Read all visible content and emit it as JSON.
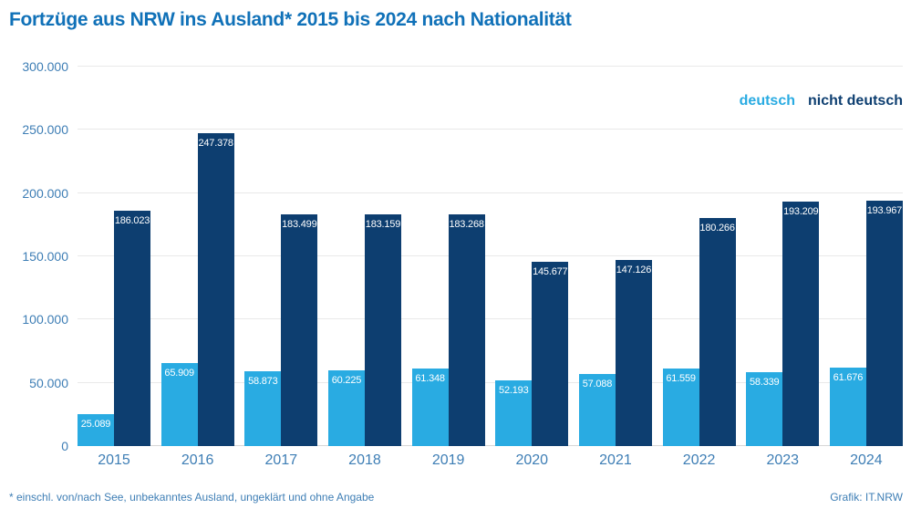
{
  "title": "Fortzüge aus NRW ins Ausland* 2015 bis 2024 nach Nationalität",
  "legend": {
    "deutsch": "deutsch",
    "nicht_deutsch": "nicht deutsch"
  },
  "footnote": "* einschl. von/nach See, unbekanntes Ausland, ungeklärt und ohne Angabe",
  "credit": "Grafik: IT.NRW",
  "colors": {
    "title": "#1071B8",
    "axis_text": "#3E7EB5",
    "grid": "#E9E9E9",
    "value_label": "#FFFFFF",
    "deutsch": "#29ABE2",
    "nicht_deutsch": "#0D3E70"
  },
  "chart_data": {
    "type": "bar",
    "title": "Fortzüge aus NRW ins Ausland* 2015 bis 2024 nach Nationalität",
    "categories": [
      "2015",
      "2016",
      "2017",
      "2018",
      "2019",
      "2020",
      "2021",
      "2022",
      "2023",
      "2024"
    ],
    "series": [
      {
        "name": "deutsch",
        "color": "#29ABE2",
        "values": [
          25089,
          65909,
          58873,
          60225,
          61348,
          52193,
          57088,
          61559,
          58339,
          61676
        ],
        "labels": [
          "25.089",
          "65.909",
          "58.873",
          "60.225",
          "61.348",
          "52.193",
          "57.088",
          "61.559",
          "58.339",
          "61.676"
        ]
      },
      {
        "name": "nicht deutsch",
        "color": "#0D3E70",
        "values": [
          186023,
          247378,
          183499,
          183159,
          183268,
          145677,
          147126,
          180266,
          193209,
          193967
        ],
        "labels": [
          "186.023",
          "247.378",
          "183.499",
          "183.159",
          "183.268",
          "145.677",
          "147.126",
          "180.266",
          "193.209",
          "193.967"
        ]
      }
    ],
    "xlabel": "",
    "ylabel": "",
    "ylim": [
      0,
      300000
    ],
    "yticks": [
      0,
      50000,
      100000,
      150000,
      200000,
      250000,
      300000
    ],
    "ytick_labels": [
      "0",
      "50.000",
      "100.000",
      "150.000",
      "200.000",
      "250.000",
      "300.000"
    ],
    "grid": true,
    "legend_position": "top-right"
  }
}
